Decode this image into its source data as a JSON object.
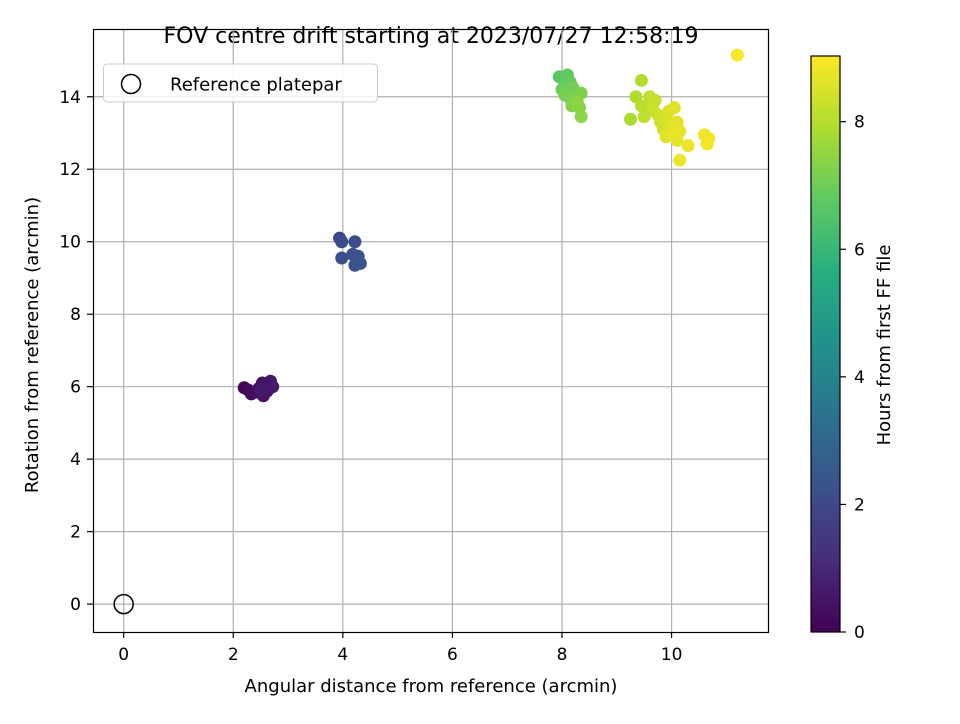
{
  "chart_data": {
    "type": "scatter",
    "title": "FOV centre drift starting at 2023/07/27 12:58:19",
    "xlabel": "Angular distance from reference (arcmin)",
    "ylabel": "Rotation from reference (arcmin)",
    "xlim": [
      -0.56,
      11.76
    ],
    "ylim": [
      -0.77,
      15.87
    ],
    "xticks": [
      0,
      2,
      4,
      6,
      8,
      10
    ],
    "yticks": [
      0,
      2,
      4,
      6,
      8,
      10,
      12,
      14
    ],
    "grid": true,
    "legend": {
      "placement": "upper-left",
      "entries": [
        {
          "label": "Reference platepar",
          "marker": "open-circle"
        }
      ]
    },
    "reference_point": {
      "x": 0,
      "y": 0
    },
    "colorbar": {
      "label": "Hours from first FF file",
      "colormap": "viridis",
      "range": [
        0,
        9.03
      ],
      "ticks": [
        0,
        2,
        4,
        6,
        8
      ]
    },
    "series": [
      {
        "points": [
          {
            "x": 2.2,
            "y": 5.97,
            "c": 0.1
          },
          {
            "x": 2.28,
            "y": 5.9,
            "c": 0.15
          },
          {
            "x": 2.33,
            "y": 5.8,
            "c": 0.2
          },
          {
            "x": 2.4,
            "y": 5.85,
            "c": 0.25
          },
          {
            "x": 2.47,
            "y": 5.95,
            "c": 0.3
          },
          {
            "x": 2.53,
            "y": 6.1,
            "c": 0.35
          },
          {
            "x": 2.55,
            "y": 5.75,
            "c": 0.4
          },
          {
            "x": 2.6,
            "y": 6.05,
            "c": 0.45
          },
          {
            "x": 2.62,
            "y": 5.88,
            "c": 0.5
          },
          {
            "x": 2.68,
            "y": 6.15,
            "c": 0.55
          },
          {
            "x": 2.72,
            "y": 6.0,
            "c": 0.6
          },
          {
            "x": 2.5,
            "y": 5.9,
            "c": 0.65
          },
          {
            "x": 3.94,
            "y": 10.1,
            "c": 2.0
          },
          {
            "x": 3.98,
            "y": 10.0,
            "c": 2.05
          },
          {
            "x": 4.22,
            "y": 10.0,
            "c": 2.1
          },
          {
            "x": 3.98,
            "y": 9.55,
            "c": 2.15
          },
          {
            "x": 4.18,
            "y": 9.65,
            "c": 2.2
          },
          {
            "x": 4.28,
            "y": 9.6,
            "c": 2.25
          },
          {
            "x": 4.22,
            "y": 9.35,
            "c": 2.3
          },
          {
            "x": 4.32,
            "y": 9.4,
            "c": 2.35
          },
          {
            "x": 7.95,
            "y": 14.55,
            "c": 6.7
          },
          {
            "x": 8.02,
            "y": 14.5,
            "c": 6.75
          },
          {
            "x": 8.1,
            "y": 14.6,
            "c": 6.8
          },
          {
            "x": 8.05,
            "y": 14.35,
            "c": 6.85
          },
          {
            "x": 8.15,
            "y": 14.4,
            "c": 6.9
          },
          {
            "x": 8.0,
            "y": 14.2,
            "c": 6.95
          },
          {
            "x": 8.12,
            "y": 14.15,
            "c": 7.0
          },
          {
            "x": 8.2,
            "y": 14.25,
            "c": 7.05
          },
          {
            "x": 8.05,
            "y": 14.05,
            "c": 7.1
          },
          {
            "x": 8.15,
            "y": 13.95,
            "c": 7.15
          },
          {
            "x": 8.25,
            "y": 14.0,
            "c": 7.2
          },
          {
            "x": 8.35,
            "y": 14.1,
            "c": 7.25
          },
          {
            "x": 8.18,
            "y": 13.75,
            "c": 7.3
          },
          {
            "x": 8.32,
            "y": 13.7,
            "c": 7.35
          },
          {
            "x": 8.35,
            "y": 13.45,
            "c": 7.4
          },
          {
            "x": 8.28,
            "y": 13.85,
            "c": 7.45
          },
          {
            "x": 9.25,
            "y": 13.38,
            "c": 7.9
          },
          {
            "x": 9.35,
            "y": 14.0,
            "c": 7.95
          },
          {
            "x": 9.45,
            "y": 14.45,
            "c": 8.0
          },
          {
            "x": 9.45,
            "y": 13.75,
            "c": 8.05
          },
          {
            "x": 9.55,
            "y": 13.6,
            "c": 8.1
          },
          {
            "x": 9.5,
            "y": 13.45,
            "c": 8.15
          },
          {
            "x": 9.6,
            "y": 14.0,
            "c": 8.2
          },
          {
            "x": 9.7,
            "y": 13.9,
            "c": 8.25
          },
          {
            "x": 9.65,
            "y": 13.7,
            "c": 8.3
          },
          {
            "x": 9.75,
            "y": 13.5,
            "c": 8.35
          },
          {
            "x": 9.8,
            "y": 13.3,
            "c": 8.4
          },
          {
            "x": 9.85,
            "y": 13.1,
            "c": 8.45
          },
          {
            "x": 9.9,
            "y": 13.4,
            "c": 8.5
          },
          {
            "x": 9.95,
            "y": 13.6,
            "c": 8.55
          },
          {
            "x": 10.0,
            "y": 13.2,
            "c": 8.6
          },
          {
            "x": 9.9,
            "y": 12.9,
            "c": 8.6
          },
          {
            "x": 10.05,
            "y": 13.7,
            "c": 8.65
          },
          {
            "x": 10.1,
            "y": 13.3,
            "c": 8.65
          },
          {
            "x": 10.0,
            "y": 12.95,
            "c": 8.7
          },
          {
            "x": 10.1,
            "y": 12.8,
            "c": 8.7
          },
          {
            "x": 10.15,
            "y": 13.05,
            "c": 8.75
          },
          {
            "x": 10.15,
            "y": 12.25,
            "c": 8.8
          },
          {
            "x": 10.3,
            "y": 12.65,
            "c": 8.8
          },
          {
            "x": 10.6,
            "y": 12.95,
            "c": 8.85
          },
          {
            "x": 10.65,
            "y": 12.7,
            "c": 8.9
          },
          {
            "x": 10.68,
            "y": 12.85,
            "c": 8.9
          },
          {
            "x": 11.2,
            "y": 15.15,
            "c": 9.0
          }
        ]
      }
    ]
  }
}
